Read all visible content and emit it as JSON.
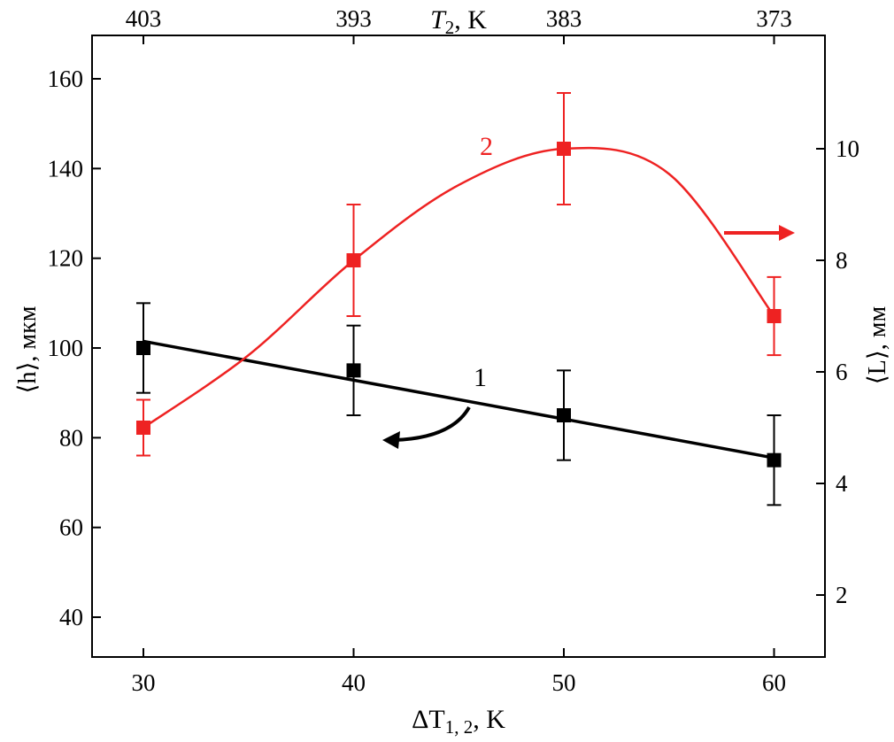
{
  "chart_data": {
    "type": "line",
    "x_axis": {
      "label_prefix": "ΔT",
      "label_sub": "1, 2",
      "label_suffix": ", K",
      "ticks": [
        30,
        40,
        50,
        60
      ],
      "range": [
        27.5,
        62.5
      ]
    },
    "x_axis_top": {
      "label_prefix": "T",
      "label_sub": "2",
      "label_suffix": ", K",
      "ticks": [
        "403",
        "393",
        "383",
        "373"
      ]
    },
    "y_axis_left": {
      "label": "⟨h⟩, мкм",
      "ticks": [
        40,
        60,
        80,
        100,
        120,
        140,
        160
      ],
      "range": [
        31,
        164
      ]
    },
    "y_axis_right": {
      "label": "⟨L⟩, мм",
      "ticks": [
        2,
        4,
        6,
        8,
        10
      ],
      "range": [
        0.95,
        11.5
      ]
    },
    "colors": {
      "series1": "#000000",
      "series2": "#ee2222"
    },
    "series": [
      {
        "name": "1",
        "axis": "left",
        "x": [
          30,
          40,
          50,
          60
        ],
        "y": [
          100,
          95,
          85,
          75
        ],
        "error": [
          10,
          10,
          10,
          10
        ],
        "fit": {
          "type": "linear",
          "x": [
            30,
            60
          ],
          "y": [
            101.5,
            75.5
          ]
        }
      },
      {
        "name": "2",
        "axis": "right",
        "x": [
          30,
          40,
          50,
          60
        ],
        "y": [
          5.0,
          8.0,
          10.0,
          7.0
        ],
        "error": [
          0.5,
          1.0,
          1.0,
          0.7
        ],
        "fit": {
          "type": "smooth",
          "x": [
            30,
            35,
            40,
            45,
            50,
            55,
            60
          ],
          "y": [
            5.0,
            6.3,
            8.0,
            9.35,
            10.0,
            9.55,
            7.0
          ]
        }
      }
    ],
    "annotations": [
      {
        "text": "1",
        "note": "arrow points to left axis"
      },
      {
        "text": "2",
        "note": "arrow points to right axis"
      }
    ]
  }
}
